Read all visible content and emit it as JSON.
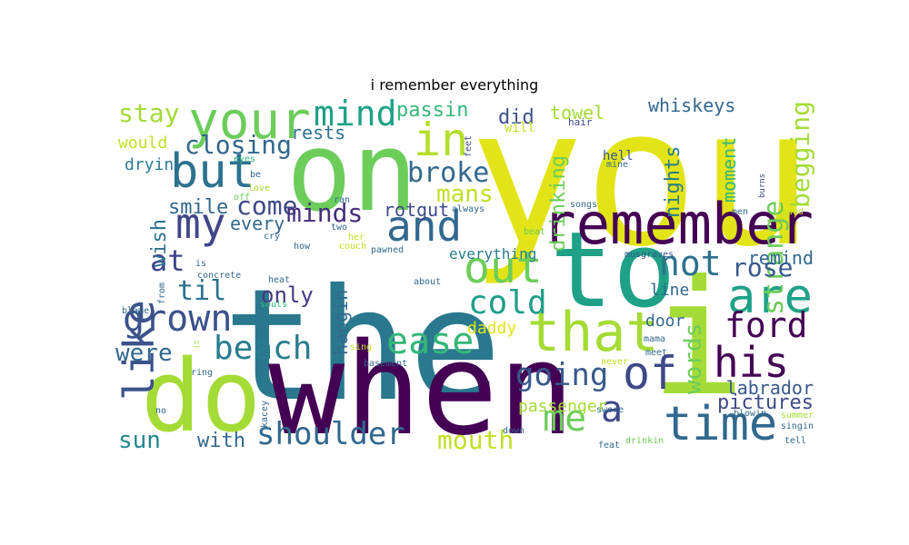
{
  "title": "i remember everything",
  "colors": {
    "c_yellow": "#e2e418",
    "c_yellowgreen": "#a5db36",
    "c_green": "#6ccd5a",
    "c_teal": "#29788e",
    "c_tealgreen": "#1fa187",
    "c_purple": "#440154",
    "c_indigo": "#414487",
    "c_steel": "#31688e",
    "c_lime": "#c2df23",
    "c_midgreen": "#35b779"
  },
  "words": [
    {
      "text": "you",
      "color": "#e2e418"
    },
    {
      "text": "the",
      "color": "#29788e"
    },
    {
      "text": "when",
      "color": "#440154"
    },
    {
      "text": "on",
      "color": "#6ccd5a"
    },
    {
      "text": "do",
      "color": "#a5db36"
    },
    {
      "text": "i",
      "color": "#a5db36"
    },
    {
      "text": "to",
      "color": "#1fa187"
    },
    {
      "text": "remember",
      "color": "#440154"
    },
    {
      "text": "your",
      "color": "#6ccd5a"
    },
    {
      "text": "but",
      "color": "#2c728e"
    },
    {
      "text": "that",
      "color": "#a5db36"
    },
    {
      "text": "out",
      "color": "#6ccd5a"
    },
    {
      "text": "are",
      "color": "#1fa187"
    },
    {
      "text": "time",
      "color": "#31688e"
    },
    {
      "text": "like",
      "color": "#3b528b"
    },
    {
      "text": "my",
      "color": "#404688"
    },
    {
      "text": "and",
      "color": "#31688e"
    },
    {
      "text": "in",
      "color": "#b5de2b"
    },
    {
      "text": "his",
      "color": "#440154"
    },
    {
      "text": "of",
      "color": "#3e4989"
    },
    {
      "text": "grown",
      "color": "#3b528b"
    },
    {
      "text": "beach",
      "color": "#287d8e"
    },
    {
      "text": "ease",
      "color": "#35b779"
    },
    {
      "text": "going",
      "color": "#38598c"
    },
    {
      "text": "me",
      "color": "#6ccd5a"
    },
    {
      "text": "a",
      "color": "#3e4989"
    },
    {
      "text": "shoulder",
      "color": "#31688e"
    },
    {
      "text": "mind",
      "color": "#1fa187"
    },
    {
      "text": "not",
      "color": "#2c728e"
    },
    {
      "text": "cold",
      "color": "#1f9e89"
    },
    {
      "text": "ford",
      "color": "#440154"
    },
    {
      "text": "broke",
      "color": "#31688e"
    },
    {
      "text": "mouth",
      "color": "#c2df23"
    },
    {
      "text": "strange",
      "color": "#6ccd5a"
    },
    {
      "text": "closing",
      "color": "#31688e"
    },
    {
      "text": "stay",
      "color": "#a5db36"
    },
    {
      "text": "come",
      "color": "#3e4989"
    },
    {
      "text": "minds",
      "color": "#472d7b"
    },
    {
      "text": "at",
      "color": "#414487"
    },
    {
      "text": "til",
      "color": "#2c728e"
    },
    {
      "text": "only",
      "color": "#443983"
    },
    {
      "text": "were",
      "color": "#31688e"
    },
    {
      "text": "rose",
      "color": "#38598c"
    },
    {
      "text": "words",
      "color": "#6ccd5a"
    },
    {
      "text": "begging",
      "color": "#a5db36"
    },
    {
      "text": "mans",
      "color": "#c2df23"
    },
    {
      "text": "remind",
      "color": "#31688e"
    },
    {
      "text": "sun",
      "color": "#23888e"
    },
    {
      "text": "with",
      "color": "#31688e"
    },
    {
      "text": "pictures",
      "color": "#3e4989"
    },
    {
      "text": "labrador",
      "color": "#38598c"
    },
    {
      "text": "drinking",
      "color": "#6ccd5a"
    },
    {
      "text": "nights",
      "color": "#287d8e"
    },
    {
      "text": "moment",
      "color": "#35b779"
    },
    {
      "text": "smile",
      "color": "#31688e"
    },
    {
      "text": "wish",
      "color": "#2c728e"
    },
    {
      "text": "every",
      "color": "#31688e"
    },
    {
      "text": "passin",
      "color": "#35b779"
    },
    {
      "text": "rests",
      "color": "#2c728e"
    },
    {
      "text": "did",
      "color": "#3b528b"
    },
    {
      "text": "towel",
      "color": "#a5db36"
    },
    {
      "text": "whiskeys",
      "color": "#31688e"
    },
    {
      "text": "rotgut",
      "color": "#3e4989"
    },
    {
      "text": "hangin",
      "color": "#31688e"
    },
    {
      "text": "door",
      "color": "#31688e"
    },
    {
      "text": "line",
      "color": "#31688e"
    },
    {
      "text": "daddy",
      "color": "#e2e418"
    },
    {
      "text": "passenger",
      "color": "#a5db36"
    },
    {
      "text": "everything",
      "color": "#287d8e"
    },
    {
      "text": "would",
      "color": "#c2df23"
    },
    {
      "text": "dryin",
      "color": "#287d8e"
    },
    {
      "text": "will",
      "color": "#c2df23"
    },
    {
      "text": "hell",
      "color": "#38598c"
    },
    {
      "text": "mine",
      "color": "#31688e"
    },
    {
      "text": "hair",
      "color": "#3e4989"
    },
    {
      "text": "feet",
      "color": "#3e4989"
    },
    {
      "text": "eyes",
      "color": "#35b779"
    },
    {
      "text": "be",
      "color": "#31688e"
    },
    {
      "text": "love",
      "color": "#a5db36"
    },
    {
      "text": "off",
      "color": "#6ccd5a"
    },
    {
      "text": "ran",
      "color": "#31688e"
    },
    {
      "text": "always",
      "color": "#31688e"
    },
    {
      "text": "songs",
      "color": "#31688e"
    },
    {
      "text": "two",
      "color": "#31688e"
    },
    {
      "text": "her",
      "color": "#c2df23"
    },
    {
      "text": "cry",
      "color": "#31688e"
    },
    {
      "text": "how",
      "color": "#31688e"
    },
    {
      "text": "couch",
      "color": "#c2df23"
    },
    {
      "text": "pawned",
      "color": "#31688e"
    },
    {
      "text": "beat",
      "color": "#6ccd5a"
    },
    {
      "text": "musgraves",
      "color": "#38598c"
    },
    {
      "text": "men",
      "color": "#31688e"
    },
    {
      "text": "sand",
      "color": "#c2df23"
    },
    {
      "text": "man",
      "color": "#c2df23"
    },
    {
      "text": "burns",
      "color": "#3e4989"
    },
    {
      "text": "is",
      "color": "#31688e"
    },
    {
      "text": "concrete",
      "color": "#31688e"
    },
    {
      "text": "heat",
      "color": "#31688e"
    },
    {
      "text": "about",
      "color": "#31688e"
    },
    {
      "text": "from",
      "color": "#31688e"
    },
    {
      "text": "souls",
      "color": "#35b779"
    },
    {
      "text": "blame",
      "color": "#31688e"
    },
    {
      "text": "sing",
      "color": "#c2df23"
    },
    {
      "text": "it",
      "color": "#a5db36"
    },
    {
      "text": "basement",
      "color": "#31688e"
    },
    {
      "text": "ring",
      "color": "#31688e"
    },
    {
      "text": "never",
      "color": "#c2df23"
    },
    {
      "text": "mama",
      "color": "#31688e"
    },
    {
      "text": "meet",
      "color": "#31688e"
    },
    {
      "text": "no",
      "color": "#31688e"
    },
    {
      "text": "kacey",
      "color": "#31688e"
    },
    {
      "text": "swore",
      "color": "#31688e"
    },
    {
      "text": "blowin",
      "color": "#31688e"
    },
    {
      "text": "summer",
      "color": "#a5db36"
    },
    {
      "text": "singin",
      "color": "#31688e"
    },
    {
      "text": "down",
      "color": "#31688e"
    },
    {
      "text": "feat",
      "color": "#31688e"
    },
    {
      "text": "drinkin",
      "color": "#6ccd5a"
    },
    {
      "text": "tell",
      "color": "#31688e"
    }
  ]
}
